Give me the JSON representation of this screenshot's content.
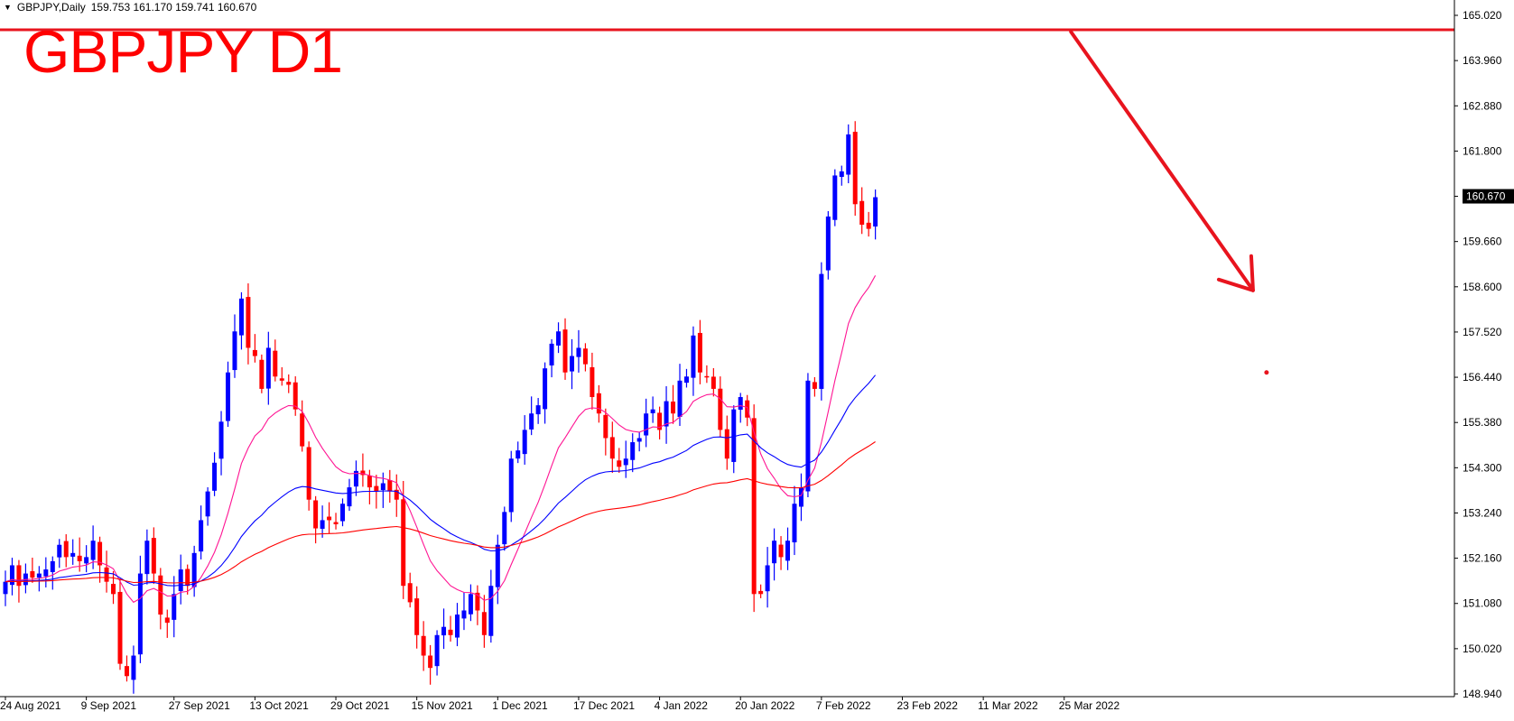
{
  "header": {
    "menu_icon": "triangle-down-icon",
    "symbol": "GBPJPY,Daily",
    "ohlc": "159.753 161.170 159.741 160.670"
  },
  "annotation_title": "GBPJPY D1",
  "colors": {
    "bull": "#0000ff",
    "bear": "#ff0000",
    "ma_fast": "#ff1493",
    "ma_mid": "#0000ff",
    "ma_slow": "#ff0000",
    "annotation": "#e8141e",
    "current_price_bg": "#000000"
  },
  "chart_data": {
    "type": "candlestick",
    "ylim": [
      148.5,
      165.3
    ],
    "y_ticks": [
      "165.020",
      "163.960",
      "162.880",
      "161.800",
      "160.670",
      "159.660",
      "158.600",
      "157.520",
      "156.440",
      "155.380",
      "154.300",
      "153.240",
      "152.160",
      "151.080",
      "150.020",
      "148.940"
    ],
    "current_price": "160.670",
    "x_labels": [
      "24 Aug 2021",
      "9 Sep 2021",
      "27 Sep 2021",
      "13 Oct 2021",
      "29 Oct 2021",
      "15 Nov 2021",
      "1 Dec 2021",
      "17 Dec 2021",
      "4 Jan 2022",
      "20 Jan 2022",
      "7 Feb 2022",
      "23 Feb 2022",
      "11 Mar 2022",
      "25 Mar 2022"
    ],
    "x_label_index": [
      0,
      12,
      25,
      37,
      49,
      61,
      73,
      85,
      97,
      109,
      121,
      133,
      145,
      157
    ],
    "closes": [
      151.3,
      151.7,
      151.2,
      151.5,
      151.4,
      151.5,
      151.6,
      151.8,
      152.2,
      151.9,
      152.0,
      151.8,
      151.9,
      152.3,
      151.7,
      151.3,
      151.0,
      149.3,
      149.0,
      149.5,
      151.5,
      152.3,
      151.5,
      150.5,
      150.3,
      151.0,
      151.6,
      151.2,
      152.0,
      152.8,
      153.5,
      154.2,
      155.2,
      156.4,
      157.4,
      158.2,
      157.0,
      156.8,
      156.0,
      157.0,
      156.3,
      156.2,
      156.1,
      155.5,
      154.6,
      153.3,
      152.6,
      152.8,
      152.8,
      152.7,
      153.2,
      153.6,
      154.0,
      153.9,
      153.6,
      153.5,
      153.7,
      153.5,
      153.3,
      151.2,
      150.8,
      150.0,
      149.5,
      149.2,
      150.0,
      150.2,
      150.0,
      150.5,
      150.6,
      151.0,
      150.6,
      150.0,
      151.2,
      152.2,
      153.0,
      154.3,
      154.5,
      155.0,
      155.4,
      155.6,
      156.5,
      157.1,
      157.4,
      156.4,
      156.8,
      157.0,
      156.6,
      155.8,
      155.4,
      154.8,
      154.3,
      154.1,
      154.3,
      154.7,
      154.8,
      155.4,
      155.5,
      155.0,
      155.7,
      155.4,
      156.2,
      156.3,
      157.3,
      156.4,
      156.3,
      156.0,
      155.0,
      154.3,
      155.5,
      155.8,
      155.3,
      151.0,
      151.0,
      151.7,
      152.3,
      151.9,
      152.3,
      153.2,
      153.6,
      156.2,
      156.0,
      158.8,
      160.2,
      161.2,
      161.3,
      162.2,
      160.5,
      160.0,
      159.9,
      160.67
    ],
    "series": [
      {
        "name": "",
        "color": "#ff1493"
      },
      {
        "name": "",
        "color": "#0000ff"
      },
      {
        "name": "",
        "color": "#ff0000"
      }
    ],
    "annotations": {
      "resistance": 164.75,
      "arrow_start": [
        158,
        164.7
      ],
      "arrow_end": [
        185,
        158.4
      ],
      "dot": [
        187,
        156.4
      ]
    }
  }
}
